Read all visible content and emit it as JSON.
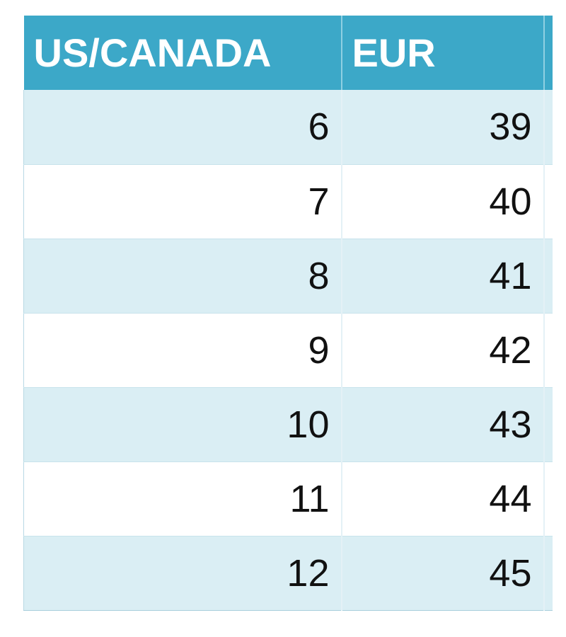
{
  "table": {
    "header": [
      "US/CANADA",
      "EUR"
    ],
    "rows": [
      [
        6,
        39
      ],
      [
        7,
        40
      ],
      [
        8,
        41
      ],
      [
        9,
        42
      ],
      [
        10,
        43
      ],
      [
        11,
        44
      ],
      [
        12,
        45
      ]
    ]
  }
}
